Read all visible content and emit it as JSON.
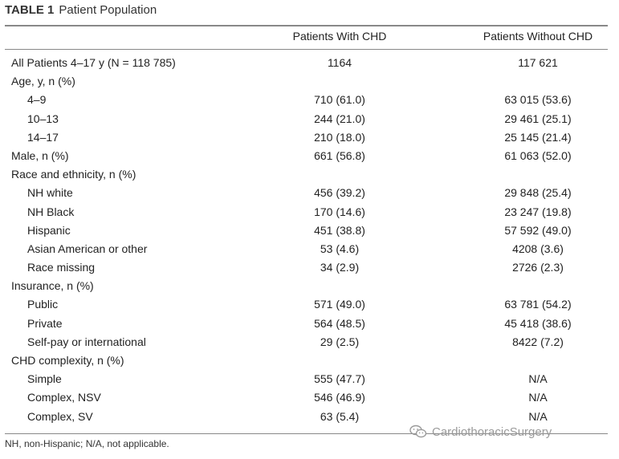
{
  "table": {
    "label": "TABLE 1",
    "title": "Patient Population",
    "columns": [
      "",
      "Patients With CHD",
      "Patients Without CHD"
    ],
    "rows": [
      {
        "type": "main",
        "label": "All Patients 4–17 y (N = 118 785)",
        "with": "1164",
        "without": "117 621"
      },
      {
        "type": "main",
        "label": "Age, y, n (%)",
        "with": "",
        "without": ""
      },
      {
        "type": "sub",
        "label": "4–9",
        "with": "710 (61.0)",
        "without": "63 015 (53.6)"
      },
      {
        "type": "sub",
        "label": "10–13",
        "with": "244 (21.0)",
        "without": "29 461 (25.1)"
      },
      {
        "type": "sub",
        "label": "14–17",
        "with": "210 (18.0)",
        "without": "25 145 (21.4)"
      },
      {
        "type": "main",
        "label": "Male, n (%)",
        "with": "661 (56.8)",
        "without": "61 063 (52.0)"
      },
      {
        "type": "main",
        "label": "Race and ethnicity, n (%)",
        "with": "",
        "without": ""
      },
      {
        "type": "sub",
        "label": "NH white",
        "with": "456 (39.2)",
        "without": "29 848 (25.4)"
      },
      {
        "type": "sub",
        "label": "NH Black",
        "with": "170 (14.6)",
        "without": "23 247 (19.8)"
      },
      {
        "type": "sub",
        "label": "Hispanic",
        "with": "451 (38.8)",
        "without": "57 592 (49.0)"
      },
      {
        "type": "sub",
        "label": "Asian American or other",
        "with": "53 (4.6)",
        "without": "4208 (3.6)"
      },
      {
        "type": "sub",
        "label": "Race missing",
        "with": "34 (2.9)",
        "without": "2726 (2.3)"
      },
      {
        "type": "main",
        "label": "Insurance, n (%)",
        "with": "",
        "without": ""
      },
      {
        "type": "sub",
        "label": "Public",
        "with": "571 (49.0)",
        "without": "63 781 (54.2)"
      },
      {
        "type": "sub",
        "label": "Private",
        "with": "564 (48.5)",
        "without": "45 418 (38.6)"
      },
      {
        "type": "sub",
        "label": "Self-pay or international",
        "with": "29 (2.5)",
        "without": "8422 (7.2)"
      },
      {
        "type": "main",
        "label": "CHD complexity, n (%)",
        "with": "",
        "without": ""
      },
      {
        "type": "sub",
        "label": "Simple",
        "with": "555 (47.7)",
        "without": "N/A"
      },
      {
        "type": "sub",
        "label": "Complex, NSV",
        "with": "546 (46.9)",
        "without": "N/A"
      },
      {
        "type": "sub",
        "label": "Complex, SV",
        "with": "63 (5.4)",
        "without": "N/A"
      }
    ],
    "footnote": "NH, non-Hispanic; N/A, not applicable."
  },
  "watermark": {
    "text": "CardiothoracicSurgery",
    "icon": "wechat-icon"
  }
}
